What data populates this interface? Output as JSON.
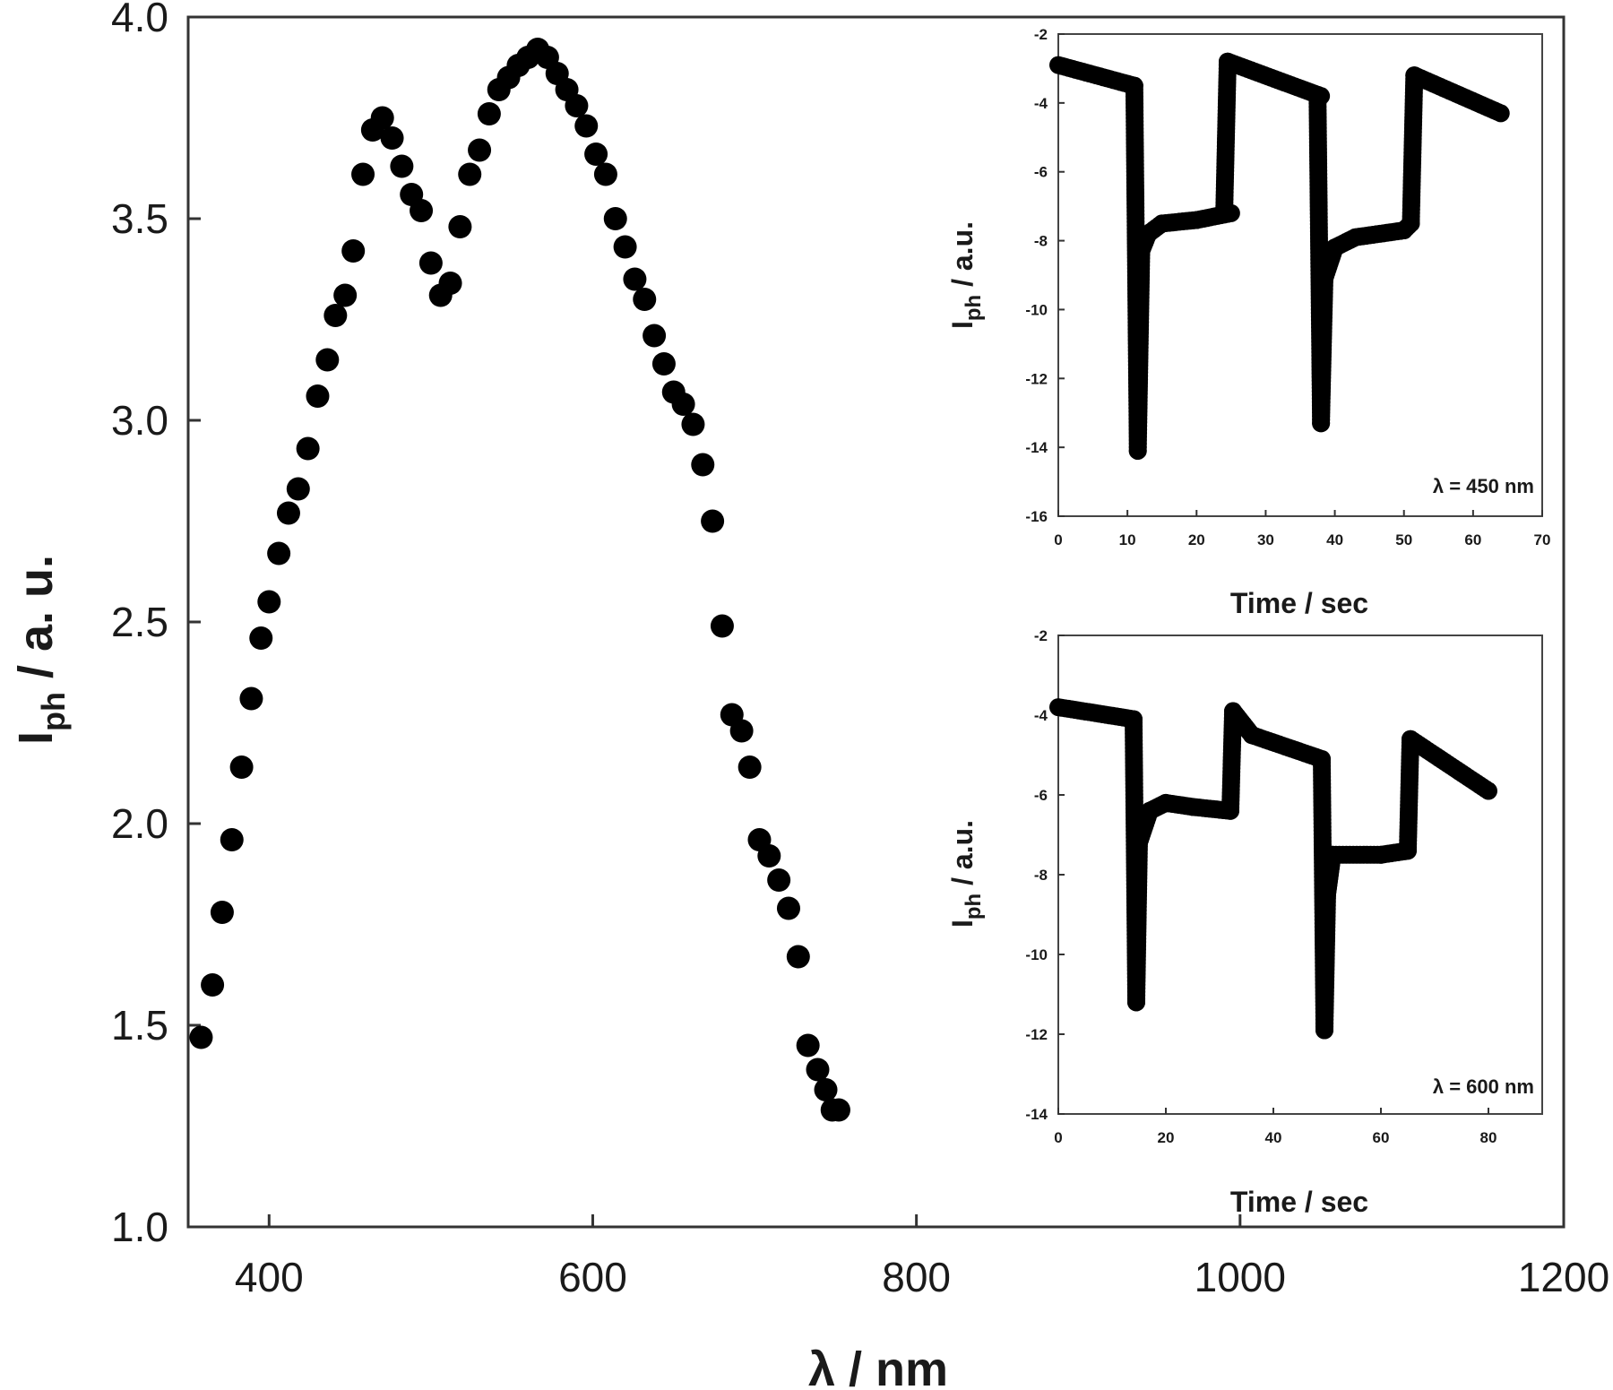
{
  "chart_data": [
    {
      "type": "scatter",
      "title": "",
      "xlabel": "λ  /  nm",
      "ylabel_main": "I",
      "ylabel_sub": "ph",
      "ylabel_rest": "  /  a. u.",
      "xlim": [
        350,
        1200
      ],
      "ylim": [
        1.0,
        4.0
      ],
      "xticks": [
        400,
        600,
        800,
        1000,
        1200
      ],
      "yticks": [
        "1.0",
        "1.5",
        "2.0",
        "2.5",
        "3.0",
        "3.5",
        "4.0"
      ],
      "grid": false,
      "marker_color": "#000000",
      "series": [
        {
          "x": [
            358,
            365,
            371,
            377,
            383,
            389,
            395,
            400,
            406,
            412,
            418,
            424,
            430,
            436,
            441,
            447,
            452,
            458,
            464,
            470,
            476,
            482,
            488,
            494,
            500,
            506,
            512,
            518,
            524,
            530,
            536,
            542,
            548,
            554,
            560,
            566,
            572,
            578,
            584,
            590,
            596,
            602,
            608,
            614,
            620,
            626,
            632,
            638,
            644,
            650,
            656,
            662,
            668,
            674,
            680,
            686,
            692,
            697,
            703,
            709,
            715,
            721,
            727,
            733,
            739,
            744,
            748,
            752
          ],
          "y": [
            1.47,
            1.6,
            1.78,
            1.96,
            2.14,
            2.31,
            2.46,
            2.55,
            2.67,
            2.77,
            2.83,
            2.93,
            3.06,
            3.15,
            3.26,
            3.31,
            3.42,
            3.61,
            3.72,
            3.75,
            3.7,
            3.63,
            3.56,
            3.52,
            3.39,
            3.31,
            3.34,
            3.48,
            3.61,
            3.67,
            3.76,
            3.82,
            3.85,
            3.88,
            3.9,
            3.92,
            3.9,
            3.86,
            3.82,
            3.78,
            3.73,
            3.66,
            3.61,
            3.5,
            3.43,
            3.35,
            3.3,
            3.21,
            3.14,
            3.07,
            3.04,
            2.99,
            2.89,
            2.75,
            2.49,
            2.27,
            2.23,
            2.14,
            1.96,
            1.92,
            1.86,
            1.79,
            1.67,
            1.45,
            1.39,
            1.34,
            1.29,
            1.29
          ]
        }
      ]
    },
    {
      "type": "scatter",
      "title": "",
      "xlabel": "Time  /  sec",
      "ylabel_main": "I",
      "ylabel_sub": "ph",
      "ylabel_rest": "  /  a.u.",
      "annotation": "λ = 450 nm",
      "xlim": [
        0,
        70
      ],
      "ylim": [
        -16,
        -2
      ],
      "xticks": [
        0,
        10,
        20,
        30,
        40,
        50,
        60,
        70
      ],
      "yticks": [
        -16,
        -14,
        -12,
        -10,
        -8,
        -6,
        -4,
        -2
      ],
      "grid": false,
      "series": [
        {
          "segments": [
            [
              [
                0,
                -2.9
              ],
              [
                11,
                -3.5
              ]
            ],
            [
              [
                11,
                -3.5
              ],
              [
                11.5,
                -14.1
              ]
            ],
            [
              [
                11.5,
                -14.1
              ],
              [
                12,
                -8.3
              ],
              [
                13,
                -7.8
              ],
              [
                15,
                -7.5
              ],
              [
                20,
                -7.4
              ],
              [
                25,
                -7.2
              ]
            ],
            [
              [
                24,
                -7.2
              ],
              [
                24.5,
                -2.8
              ]
            ],
            [
              [
                24.5,
                -2.8
              ],
              [
                38,
                -3.8
              ]
            ],
            [
              [
                37.5,
                -3.8
              ],
              [
                38,
                -13.3
              ]
            ],
            [
              [
                38,
                -13.3
              ],
              [
                38.5,
                -9.1
              ],
              [
                40,
                -8.2
              ],
              [
                43,
                -7.9
              ],
              [
                50,
                -7.7
              ],
              [
                51,
                -7.5
              ]
            ],
            [
              [
                51,
                -7.5
              ],
              [
                51.5,
                -3.2
              ]
            ],
            [
              [
                51.5,
                -3.2
              ],
              [
                64,
                -4.3
              ]
            ]
          ]
        }
      ]
    },
    {
      "type": "scatter",
      "title": "",
      "xlabel": "Time  /  sec",
      "ylabel_main": "I",
      "ylabel_sub": "ph",
      "ylabel_rest": "  /  a.u.",
      "annotation": "λ = 600 nm",
      "xlim": [
        0,
        90
      ],
      "ylim": [
        -14,
        -2
      ],
      "xticks": [
        0,
        20,
        40,
        60,
        80
      ],
      "yticks": [
        -14,
        -12,
        -10,
        -8,
        -6,
        -4,
        -2
      ],
      "grid": false,
      "series": [
        {
          "segments": [
            [
              [
                0,
                -3.8
              ],
              [
                14,
                -4.1
              ]
            ],
            [
              [
                14,
                -4.1
              ],
              [
                14.5,
                -11.2
              ]
            ],
            [
              [
                14.5,
                -11.2
              ],
              [
                15,
                -7.2
              ],
              [
                17,
                -6.4
              ],
              [
                20,
                -6.2
              ],
              [
                25,
                -6.3
              ],
              [
                32,
                -6.4
              ]
            ],
            [
              [
                32,
                -6.4
              ],
              [
                32.5,
                -3.9
              ]
            ],
            [
              [
                32.5,
                -3.9
              ],
              [
                36,
                -4.5
              ],
              [
                49,
                -5.1
              ]
            ],
            [
              [
                49,
                -5.1
              ],
              [
                49.5,
                -11.9
              ]
            ],
            [
              [
                49.5,
                -11.9
              ],
              [
                50,
                -8.5
              ],
              [
                51,
                -7.5
              ],
              [
                60,
                -7.5
              ],
              [
                65,
                -7.4
              ]
            ],
            [
              [
                65,
                -7.4
              ],
              [
                65.5,
                -4.6
              ]
            ],
            [
              [
                65.5,
                -4.6
              ],
              [
                80,
                -5.9
              ]
            ]
          ]
        }
      ]
    }
  ]
}
